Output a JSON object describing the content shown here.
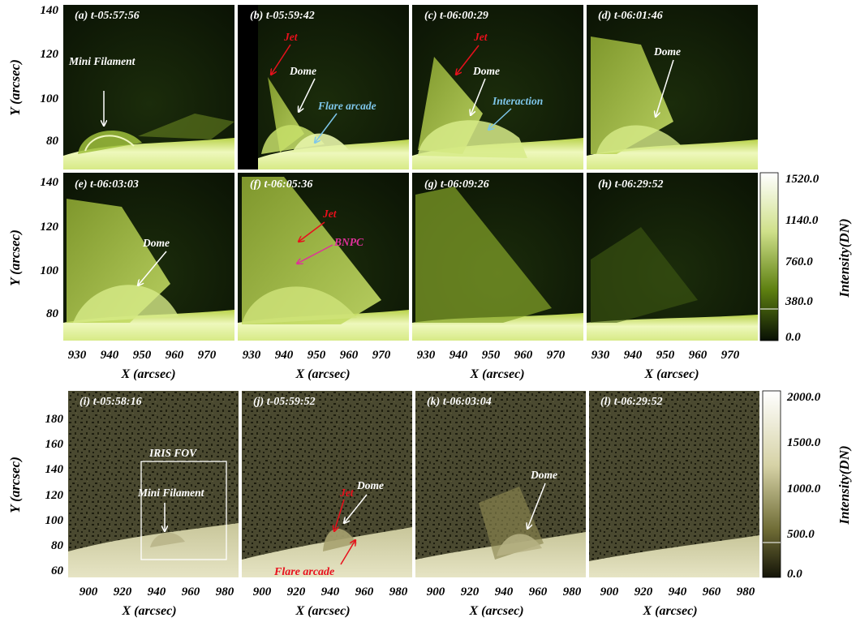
{
  "top_panels": [
    {
      "label": "(a) t-05:57:56"
    },
    {
      "label": "(b) t-05:59:42"
    },
    {
      "label": "(c) t-06:00:29"
    },
    {
      "label": "(d) t-06:01:46"
    },
    {
      "label": "(e) t-06:03:03"
    },
    {
      "label": "(f) t-06:05:36"
    },
    {
      "label": "(g) t-06:09:26"
    },
    {
      "label": "(h) t-06:29:52"
    }
  ],
  "bottom_panels": [
    {
      "label": "(i) t-05:58:16"
    },
    {
      "label": "(j) t-05:59:52"
    },
    {
      "label": "(k) t-06:03:04"
    },
    {
      "label": "(l) t-06:29:52"
    }
  ],
  "top_axes": {
    "xlabel": "X (arcsec)",
    "ylabel": "Y (arcsec)",
    "xticks": [
      "930",
      "940",
      "950",
      "960",
      "970"
    ],
    "yticks": [
      "140",
      "120",
      "100",
      "80"
    ]
  },
  "bottom_axes": {
    "xlabel": "X (arcsec)",
    "ylabel": "Y (arcsec)",
    "xticks": [
      "900",
      "920",
      "940",
      "960",
      "980"
    ],
    "yticks": [
      "180",
      "160",
      "140",
      "120",
      "100",
      "80",
      "60"
    ]
  },
  "colorbar_top": {
    "label": "Intensity(DN)",
    "ticks": [
      "1520.0",
      "1140.0",
      "760.0",
      "380.0",
      "0.0"
    ]
  },
  "colorbar_bottom": {
    "label": "Intensity(DN)",
    "ticks": [
      "2000.0",
      "1500.0",
      "1000.0",
      "500.0",
      "0.0"
    ]
  },
  "annotations": {
    "mini_filament": "Mini Filament",
    "jet": "Jet",
    "dome": "Dome",
    "flare_arcade": "Flare arcade",
    "interaction": "Interaction",
    "bnpc": "BNPC",
    "iris_fov": "IRIS FOV"
  },
  "colors": {
    "white": "#ffffff",
    "jet_red": "#e8101c",
    "cyan": "#7ec6ea",
    "magenta": "#e0309a",
    "top_bright": "#f6ffd0",
    "top_mid": "#7f9c18",
    "top_dark": "#0c1505",
    "bottom_bright": "#f2f0d8",
    "bottom_mid": "#7a7640",
    "bottom_dark": "#1c1c0c"
  }
}
